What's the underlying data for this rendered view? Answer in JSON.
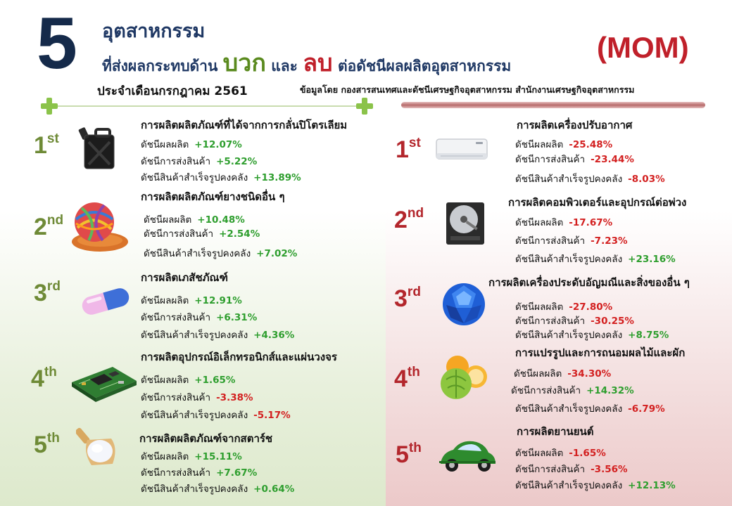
{
  "header": {
    "big_number": "5",
    "title_line1": "อุตสาหกรรม",
    "title_prefix": "ที่ส่งผลกระทบด้าน",
    "positive_word": "บวก",
    "and_word": "และ",
    "negative_word": "ลบ",
    "title_suffix": "ต่อดัชนีผลผลิตอุตสาหกรรม",
    "mom": "(MOM)",
    "period": "ประจำเดือนกรกฎาคม 2561",
    "source": "ข้อมูลโดย กองสารสนเทศและดัชนีเศรษฐกิจอุตสาหกรรม สำนักงานเศรษฐกิจอุตสาหกรรม"
  },
  "metric_labels": {
    "production": "ดัชนีผลผลิต",
    "shipment": "ดัชนีการส่งสินค้า",
    "inventory": "ดัชนีสินค้าสำเร็จรูปคงคลัง"
  },
  "colors": {
    "up": "#2e9e2e",
    "down": "#d32020",
    "rank_positive": "#6e8a36",
    "rank_negative": "#b3262c"
  },
  "positive": [
    {
      "rank": "1",
      "suffix": "st",
      "title": "การผลิตผลิตภัณฑ์ที่ได้จากการกลั่นปิโตรเลียม",
      "icon": "jerry-can-icon",
      "production": "+12.07%",
      "shipment": "+5.22%",
      "inventory": "+13.89%"
    },
    {
      "rank": "2",
      "suffix": "nd",
      "title": "การผลิตผลิตภัณฑ์ยางชนิดอื่น ๆ",
      "icon": "rubber-band-ball-icon",
      "production": "+10.48%",
      "shipment": "+2.54%",
      "inventory": "+7.02%"
    },
    {
      "rank": "3",
      "suffix": "rd",
      "title": "การผลิตเภสัชภัณฑ์",
      "icon": "capsule-icon",
      "production": "+12.91%",
      "shipment": "+6.31%",
      "inventory": "+4.36%"
    },
    {
      "rank": "4",
      "suffix": "th",
      "title": "การผลิตอุปกรณ์อิเล็กทรอนิกส์และแผ่นวงจร",
      "icon": "circuit-board-icon",
      "production": "+1.65%",
      "shipment": "-3.38%",
      "inventory": "-5.17%"
    },
    {
      "rank": "5",
      "suffix": "th",
      "title": "การผลิตผลิตภัณฑ์จากสตาร์ช",
      "icon": "starch-scoop-icon",
      "production": "+15.11%",
      "shipment": "+7.67%",
      "inventory": "+0.64%"
    }
  ],
  "negative": [
    {
      "rank": "1",
      "suffix": "st",
      "title": "การผลิตเครื่องปรับอากาศ",
      "icon": "air-conditioner-icon",
      "production": "-25.48%",
      "shipment": "-23.44%",
      "inventory": "-8.03%"
    },
    {
      "rank": "2",
      "suffix": "nd",
      "title": "การผลิตคอมพิวเตอร์และอุปกรณ์ต่อพ่วง",
      "icon": "hard-drive-icon",
      "production": "-17.67%",
      "shipment": "-7.23%",
      "inventory": "+23.16%"
    },
    {
      "rank": "3",
      "suffix": "rd",
      "title": "การผลิตเครื่องประดับอัญมณีและสิ่งของอื่น ๆ",
      "icon": "sapphire-gem-icon",
      "production": "-27.80%",
      "shipment": "-30.25%",
      "inventory": "+8.75%"
    },
    {
      "rank": "4",
      "suffix": "th",
      "title": "การแปรรูปและการถนอมผลไม้และผัก",
      "icon": "fruit-vegetable-icon",
      "production": "-34.30%",
      "shipment": "+14.32%",
      "inventory": "-6.79%"
    },
    {
      "rank": "5",
      "suffix": "th",
      "title": "การผลิตยานยนต์",
      "icon": "car-icon",
      "production": "-1.65%",
      "shipment": "-3.56%",
      "inventory": "+12.13%"
    }
  ]
}
